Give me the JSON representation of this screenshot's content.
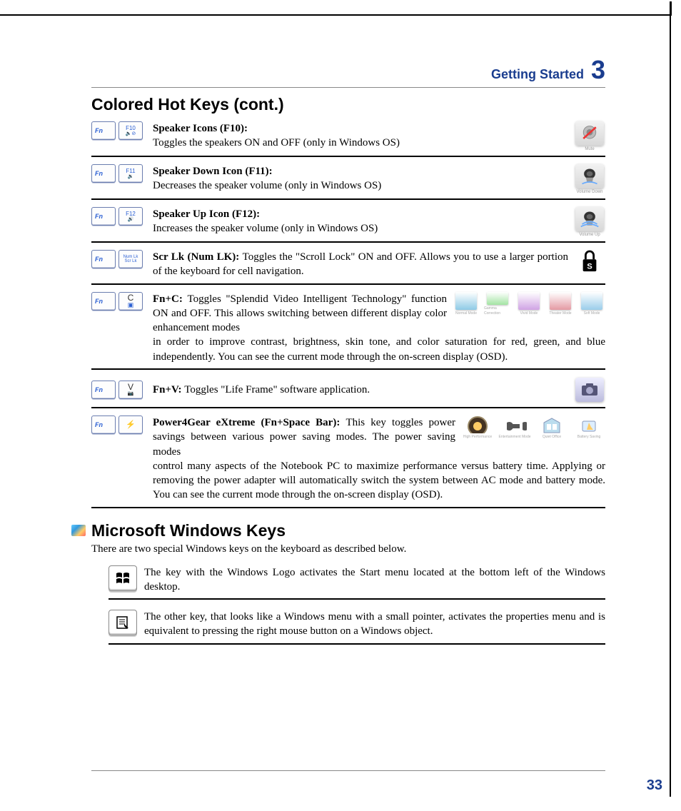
{
  "header": {
    "chapter_title": "Getting Started",
    "chapter_number": "3"
  },
  "section1": {
    "title": "Colored Hot Keys (cont.)"
  },
  "keys": {
    "fn_label": "Fn",
    "f10": {
      "top": "F10",
      "sub": "🔈⊘"
    },
    "f11": {
      "top": "F11",
      "sub": "🔉"
    },
    "f12": {
      "top": "F12",
      "sub": "🔊"
    },
    "numlk": {
      "top": "Num Lk",
      "sub": "Scr Lk"
    },
    "c": {
      "letter": "C",
      "glyph": "▣"
    },
    "v": {
      "letter": "V",
      "glyph": "📷"
    },
    "space": {
      "glyph": "⚡"
    }
  },
  "hotkeys": {
    "f10": {
      "title": "Speaker Icons (F10):",
      "body": "Toggles the speakers ON and OFF (only in Windows OS)",
      "icon_caption": "Mute"
    },
    "f11": {
      "title": "Speaker Down Icon (F11):",
      "body": "Decreases the speaker volume (only in Windows OS)",
      "icon_caption": "Volume Down"
    },
    "f12": {
      "title": "Speaker Up Icon (F12):",
      "body": "Increases the speaker volume (only in Windows OS)",
      "icon_caption": "Volume Up"
    },
    "scrlk": {
      "title": "Scr Lk (Num LK): ",
      "body": "Toggles the \"Scroll Lock\" ON and OFF. Allows you to use a larger portion of the keyboard for cell navigation."
    },
    "fnc": {
      "title": "Fn+C: ",
      "body1": "Toggles \"Splendid Video Intelligent Technology\" function ON and OFF. This allows switching between different display color enhancement modes",
      "body2": "in order to improve contrast, brightness, skin tone, and color saturation for red, green, and blue independently. You can see the current mode through the on-screen display (OSD).",
      "mode_icons": [
        {
          "color": "#8ecae6",
          "label": "Normal Mode"
        },
        {
          "color": "#a3e4a3",
          "label": "Gamma Correction"
        },
        {
          "color": "#d0a3e4",
          "label": "Vivid Mode"
        },
        {
          "color": "#e49aa3",
          "label": "Theater Mode"
        },
        {
          "color": "#9acdea",
          "label": "Soft Mode"
        }
      ]
    },
    "fnv": {
      "title": "Fn+V: ",
      "body": "Toggles \"Life Frame\" software application."
    },
    "p4g": {
      "title": "Power4Gear eXtreme (Fn+Space Bar): ",
      "body1": "This key toggles power savings between various power saving modes. The power saving modes",
      "body2": "control many aspects of the Notebook PC to maximize performance versus battery time. Applying or removing the power adapter will automatically switch the system between AC mode and battery mode. You can see the current mode through the on-screen display (OSD).",
      "mode_icons": [
        {
          "label": "High Performance"
        },
        {
          "label": "Entertainment Mode"
        },
        {
          "label": "Quiet Office"
        },
        {
          "label": "Battery Saving"
        }
      ]
    }
  },
  "section2": {
    "title": "Microsoft Windows Keys",
    "intro": "There are two special Windows keys on the keyboard as described below.",
    "winkey": "The key with the Windows Logo activates the Start menu located at the bottom left of the Windows desktop.",
    "menukey": "The other key, that looks like a Windows menu with a small pointer, activates the properties menu and is equivalent to pressing the right mouse button on a Windows object."
  },
  "footer": {
    "page_number": "33"
  },
  "colors": {
    "brand_blue": "#1a3d8f",
    "key_blue": "#2a5fd3"
  }
}
